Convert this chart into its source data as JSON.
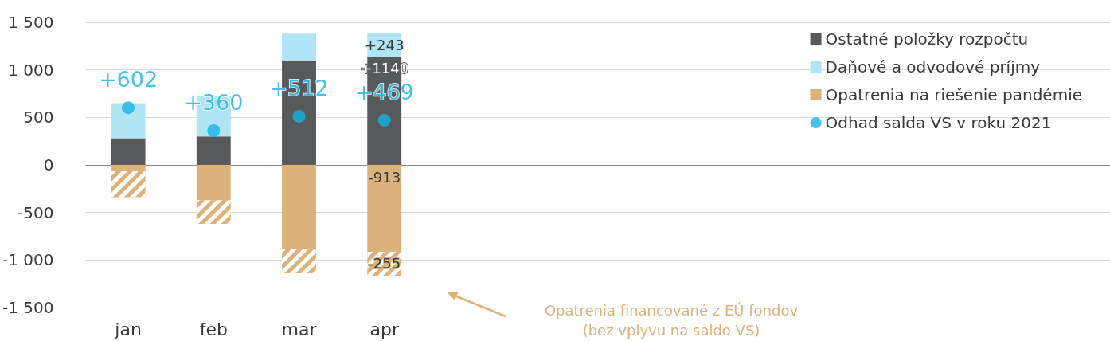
{
  "chart_data": {
    "type": "bar",
    "stacked": true,
    "categories": [
      "jan",
      "feb",
      "mar",
      "apr",
      null,
      null,
      null,
      null,
      null,
      null,
      null,
      null
    ],
    "series": [
      {
        "name": "Ostatné položky rozpočtu",
        "color": "#58595b",
        "values": [
          280,
          300,
          1100,
          1140,
          null,
          null,
          null,
          null,
          null,
          null,
          null,
          null
        ],
        "value_labels": [
          null,
          null,
          null,
          "+1140",
          null,
          null,
          null,
          null,
          null,
          null,
          null,
          null
        ]
      },
      {
        "name": "Daňové a odvodové príjmy",
        "color": "#b0e5f5",
        "values": [
          370,
          430,
          280,
          243,
          null,
          null,
          null,
          null,
          null,
          null,
          null,
          null
        ],
        "value_labels": [
          null,
          null,
          null,
          "+243",
          null,
          null,
          null,
          null,
          null,
          null,
          null,
          null
        ]
      },
      {
        "name": "Opatrenia na riešenie pandémie",
        "color": "#dbb27a",
        "values": [
          -60,
          -370,
          -880,
          -913,
          null,
          null,
          null,
          null,
          null,
          null,
          null,
          null
        ],
        "value_labels": [
          null,
          null,
          null,
          "-913",
          null,
          null,
          null,
          null,
          null,
          null,
          null,
          null
        ]
      },
      {
        "color": "#dbb27a",
        "values": [
          -280,
          -250,
          -260,
          -255,
          null,
          null,
          null,
          null,
          null,
          null,
          null,
          null
        ],
        "value_labels": [
          null,
          null,
          null,
          "-255",
          null,
          null,
          null,
          null,
          null,
          null,
          null,
          null
        ]
      },
      {
        "type": "scatter",
        "name": "Odhad salda VS v roku 2021",
        "color": "#16b1e6",
        "x": [
          "jan",
          "feb",
          "mar",
          "apr"
        ],
        "values": [
          602,
          360,
          512,
          469
        ],
        "value_labels": [
          "+602",
          "+360",
          "+512",
          "+469"
        ]
      }
    ],
    "ylim": [
      -1500,
      1500
    ],
    "yticks": [
      {
        "value": -1500,
        "label": "-1 500"
      },
      {
        "value": -1000,
        "label": "-1 000"
      },
      -500,
      0,
      500,
      {
        "value": 1000,
        "label": "1 000"
      },
      {
        "value": 1500,
        "label": "1 500"
      }
    ],
    "grid": "y",
    "legend": "top right",
    "marker": "circle",
    "annotations": [
      "Opatrenia financované z EÚ fondov\n(bez vplyvu na saldo VS)"
    ]
  }
}
